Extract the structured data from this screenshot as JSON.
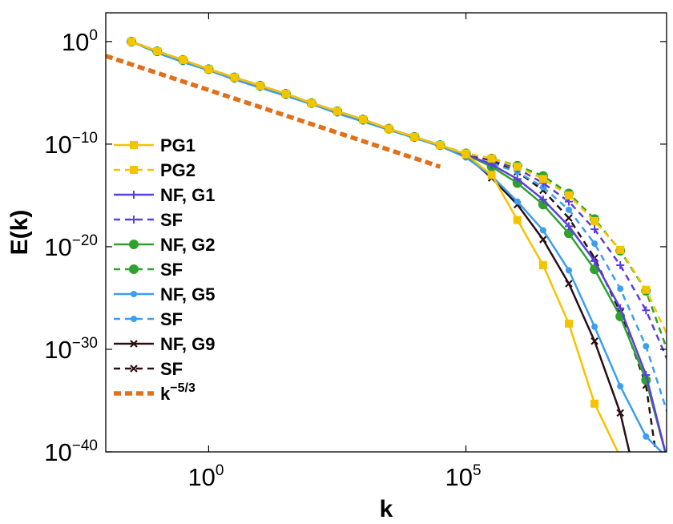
{
  "chart_data": {
    "type": "line",
    "title": "",
    "xlabel": "k",
    "ylabel": "E(k)",
    "xscale": "log",
    "yscale": "log",
    "xlim_log10": [
      -2,
      8.9
    ],
    "ylim_log10": [
      -40,
      2.8
    ],
    "grid": false,
    "legend_position": "left",
    "xticks": [
      {
        "base": "10",
        "exp": "0",
        "log10": 0
      },
      {
        "base": "10",
        "exp": "5",
        "log10": 5
      }
    ],
    "yticks": [
      {
        "base": "10",
        "exp": "0",
        "log10": 0
      },
      {
        "base": "10",
        "exp": "−10",
        "log10": -10
      },
      {
        "base": "10",
        "exp": "−20",
        "log10": -20
      },
      {
        "base": "10",
        "exp": "−30",
        "log10": -30
      },
      {
        "base": "10",
        "exp": "−40",
        "log10": -40
      }
    ],
    "series": [
      {
        "name": "PG1",
        "color": "#f5c400",
        "dash": "solid",
        "marker": "square",
        "log10_k": [
          -1.5,
          -1,
          -0.5,
          0,
          0.5,
          1,
          1.5,
          2,
          2.5,
          3,
          3.5,
          4,
          4.5,
          5,
          5.5,
          6,
          6.5,
          7,
          7.5,
          8
        ],
        "log10_E": [
          0,
          -0.95,
          -1.8,
          -2.7,
          -3.5,
          -4.3,
          -5.1,
          -6,
          -6.8,
          -7.6,
          -8.5,
          -9.3,
          -10.1,
          -11,
          -13,
          -17.4,
          -21.8,
          -27.5,
          -35.3,
          -40.5
        ]
      },
      {
        "name": "PG2",
        "color": "#f5c400",
        "dash": "dashed",
        "marker": "square",
        "log10_k": [
          -1.5,
          -1,
          -0.5,
          0,
          0.5,
          1,
          1.5,
          2,
          2.5,
          3,
          3.5,
          4,
          4.5,
          5,
          5.5,
          6,
          6.5,
          7,
          7.5,
          8,
          8.5,
          9
        ],
        "log10_E": [
          0,
          -0.95,
          -1.8,
          -2.7,
          -3.5,
          -4.3,
          -5.1,
          -6,
          -6.8,
          -7.6,
          -8.5,
          -9.3,
          -10.1,
          -10.9,
          -11.4,
          -12.2,
          -13.4,
          -15,
          -17.5,
          -20.3,
          -24.2,
          -29.5
        ]
      },
      {
        "name": "NF, G1",
        "color": "#5a3fe0",
        "dash": "solid",
        "marker": "plus",
        "log10_k": [
          -1.5,
          -1,
          -0.5,
          0,
          0.5,
          1,
          1.5,
          2,
          2.5,
          3,
          3.5,
          4,
          4.5,
          5,
          5.5,
          6,
          6.5,
          7,
          7.5,
          8,
          8.5,
          8.9
        ],
        "log10_E": [
          0,
          -0.95,
          -1.8,
          -2.7,
          -3.5,
          -4.3,
          -5.1,
          -6,
          -6.8,
          -7.6,
          -8.5,
          -9.3,
          -10.1,
          -11,
          -12,
          -13.4,
          -15.4,
          -18,
          -21.4,
          -26,
          -32.5,
          -40.5
        ]
      },
      {
        "name": "SF",
        "color": "#5a3fe0",
        "dash": "dashed",
        "marker": "plus",
        "log10_k": [
          -1.5,
          -1,
          -0.5,
          0,
          0.5,
          1,
          1.5,
          2,
          2.5,
          3,
          3.5,
          4,
          4.5,
          5,
          5.5,
          6,
          6.5,
          7,
          7.5,
          8,
          8.5,
          9
        ],
        "log10_E": [
          0,
          -0.95,
          -1.8,
          -2.7,
          -3.5,
          -4.3,
          -5.1,
          -6,
          -6.8,
          -7.6,
          -8.5,
          -9.3,
          -10.1,
          -10.9,
          -11.5,
          -12.4,
          -13.8,
          -15.6,
          -18.3,
          -21.8,
          -26.2,
          -32
        ]
      },
      {
        "name": "NF, G2",
        "color": "#2ea12e",
        "dash": "solid",
        "marker": "circle",
        "log10_k": [
          -1.5,
          -1,
          -0.5,
          0,
          0.5,
          1,
          1.5,
          2,
          2.5,
          3,
          3.5,
          4,
          4.5,
          5,
          5.5,
          6,
          6.5,
          7,
          7.5,
          8,
          8.5,
          8.9
        ],
        "log10_E": [
          0,
          -0.95,
          -1.8,
          -2.7,
          -3.5,
          -4.3,
          -5.1,
          -6,
          -6.8,
          -7.6,
          -8.5,
          -9.3,
          -10.1,
          -11,
          -12.2,
          -13.8,
          -15.9,
          -18.7,
          -22.2,
          -26.8,
          -33,
          -40.5
        ]
      },
      {
        "name": "SF",
        "color": "#2ea12e",
        "dash": "dashed",
        "marker": "circle",
        "log10_k": [
          -1.5,
          -1,
          -0.5,
          0,
          0.5,
          1,
          1.5,
          2,
          2.5,
          3,
          3.5,
          4,
          4.5,
          5,
          5.5,
          6,
          6.5,
          7,
          7.5,
          8,
          8.5,
          9
        ],
        "log10_E": [
          0,
          -0.95,
          -1.8,
          -2.7,
          -3.5,
          -4.3,
          -5.1,
          -6,
          -6.8,
          -7.6,
          -8.5,
          -9.3,
          -10.1,
          -10.9,
          -11.4,
          -12.1,
          -13.1,
          -14.8,
          -17.3,
          -20.4,
          -24.3,
          -31.3
        ]
      },
      {
        "name": "NF, G5",
        "color": "#3c9ef0",
        "dash": "solid",
        "marker": "dot",
        "log10_k": [
          -1.5,
          -1,
          -0.5,
          0,
          0.5,
          1,
          1.5,
          2,
          2.5,
          3,
          3.5,
          4,
          4.5,
          5,
          5.5,
          6,
          6.5,
          7,
          7.5,
          8,
          8.5,
          8.9
        ],
        "log10_E": [
          0,
          -1.1,
          -2,
          -2.8,
          -3.7,
          -4.5,
          -5.3,
          -6.1,
          -7,
          -7.8,
          -8.6,
          -9.4,
          -10.2,
          -11.3,
          -13.1,
          -15.6,
          -18.4,
          -22.3,
          -27.8,
          -33.6,
          -38.5,
          -40.5
        ]
      },
      {
        "name": "SF",
        "color": "#3c9ef0",
        "dash": "dashed",
        "marker": "dot",
        "log10_k": [
          -1.5,
          -1,
          -0.5,
          0,
          0.5,
          1,
          1.5,
          2,
          2.5,
          3,
          3.5,
          4,
          4.5,
          5,
          5.5,
          6,
          6.5,
          7,
          7.5,
          8,
          8.5,
          9
        ],
        "log10_E": [
          0,
          -1.1,
          -2,
          -2.8,
          -3.7,
          -4.5,
          -5.3,
          -6.1,
          -7,
          -7.8,
          -8.6,
          -9.4,
          -10.2,
          -11.1,
          -11.9,
          -12.7,
          -14.2,
          -16.4,
          -19.7,
          -24.1,
          -29.7,
          -37.5
        ]
      },
      {
        "name": "NF, G9",
        "color": "#2a0f14",
        "dash": "solid",
        "marker": "x",
        "log10_k": [
          -1.5,
          -1,
          -0.5,
          0,
          0.5,
          1,
          1.5,
          2,
          2.5,
          3,
          3.5,
          4,
          4.5,
          5,
          5.5,
          6,
          6.5,
          7,
          7.5,
          8,
          8.2
        ],
        "log10_E": [
          0,
          -0.95,
          -1.8,
          -2.7,
          -3.5,
          -4.3,
          -5.1,
          -6,
          -6.8,
          -7.6,
          -8.5,
          -9.3,
          -10.1,
          -11.1,
          -13.3,
          -15.9,
          -19.3,
          -23.6,
          -29.2,
          -36.2,
          -40.5
        ]
      },
      {
        "name": "SF",
        "color": "#2a0f14",
        "dash": "dashed",
        "marker": "x",
        "log10_k": [
          -1.5,
          -1,
          -0.5,
          0,
          0.5,
          1,
          1.5,
          2,
          2.5,
          3,
          3.5,
          4,
          4.5,
          5,
          5.5,
          6,
          6.5,
          7,
          7.5,
          8,
          8.5,
          8.7
        ],
        "log10_E": [
          0,
          -0.95,
          -1.8,
          -2.7,
          -3.5,
          -4.3,
          -5.1,
          -6,
          -6.8,
          -7.6,
          -8.5,
          -9.3,
          -10.1,
          -11,
          -11.6,
          -12.7,
          -14.5,
          -17.2,
          -21.1,
          -26.4,
          -33.5,
          -40.5
        ]
      },
      {
        "name": "k−5/3",
        "color": "#e0711c",
        "dash": "dotted-thick",
        "marker": "none",
        "log10_k": [
          -2,
          4.5
        ],
        "log10_E": [
          -1.4,
          -12.2
        ]
      }
    ]
  }
}
